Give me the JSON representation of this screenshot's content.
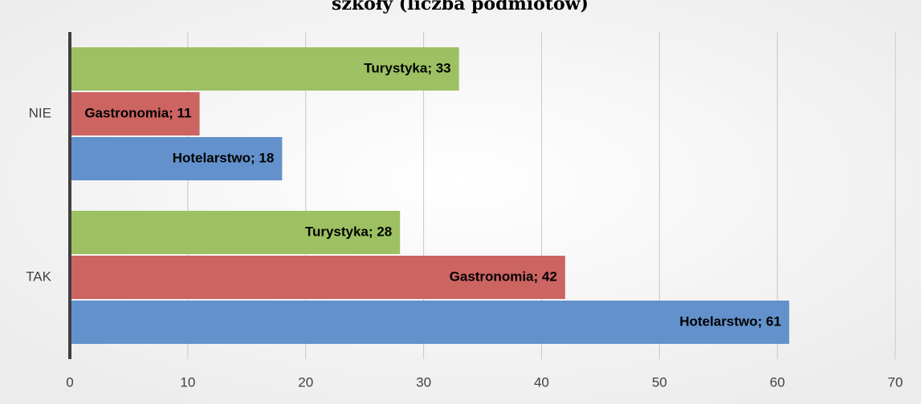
{
  "chart_data": {
    "type": "bar",
    "orientation": "horizontal",
    "title": "szkoły (liczba podmiotów)",
    "categories": [
      "TAK",
      "NIE"
    ],
    "series": [
      {
        "color": "#6391cb",
        "values": [
          61,
          18
        ],
        "value_labels": [
          "Hotelarstwo; 61",
          "Hotelarstwo; 18"
        ]
      },
      {
        "color": "#cc6462",
        "values": [
          42,
          11
        ],
        "value_labels": [
          "Gastronomia; 42",
          "Gastronomia; 11"
        ]
      },
      {
        "color": "#9dc162",
        "values": [
          28,
          33
        ],
        "value_labels": [
          "Turystyka; 28",
          "Turystyka; 33"
        ]
      }
    ],
    "xlim": [
      0,
      70
    ],
    "xticks": [
      0,
      10,
      20,
      30,
      40,
      50,
      60,
      70
    ],
    "grid": true
  }
}
